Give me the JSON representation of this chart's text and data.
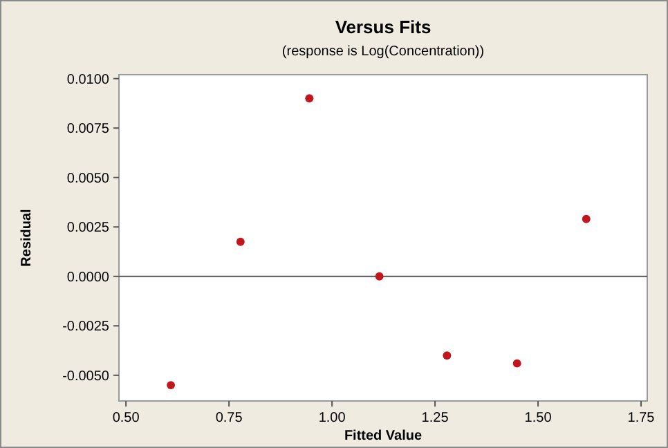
{
  "chart_data": {
    "type": "scatter",
    "title": "Versus Fits",
    "subtitle": "(response is Log(Concentration))",
    "xlabel": "Fitted Value",
    "ylabel": "Residual",
    "x": [
      0.609,
      0.778,
      0.945,
      1.115,
      1.279,
      1.449,
      1.617
    ],
    "series": [
      {
        "color": "#c0161c",
        "values": [
          -0.0055,
          0.00175,
          0.009,
          0.0,
          -0.004,
          -0.0044,
          0.0029
        ]
      }
    ],
    "xlim": [
      0.483,
      1.765
    ],
    "ylim": [
      -0.0063,
      0.0102
    ],
    "xticks": [
      {
        "value": 0.5,
        "label": "0.50"
      },
      {
        "value": 0.75,
        "label": "0.75"
      },
      {
        "value": 1,
        "label": "1.00"
      },
      {
        "value": 1.25,
        "label": "1.25"
      },
      {
        "value": 1.5,
        "label": "1.50"
      },
      {
        "value": 1.75,
        "label": "1.75"
      }
    ],
    "yticks": [
      {
        "value": -0.005,
        "label": "-0.0050"
      },
      {
        "value": -0.0025,
        "label": "-0.0025"
      },
      {
        "value": 0,
        "label": "0.0000"
      },
      {
        "value": 0.0025,
        "label": "0.0025"
      },
      {
        "value": 0.005,
        "label": "0.0050"
      },
      {
        "value": 0.0075,
        "label": "0.0075"
      },
      {
        "value": 0.01,
        "label": "0.0100"
      }
    ],
    "ref_lines": [
      {
        "axis": "y",
        "value": 0,
        "color": "#555555"
      }
    ],
    "grid": false,
    "marker": "circle"
  }
}
